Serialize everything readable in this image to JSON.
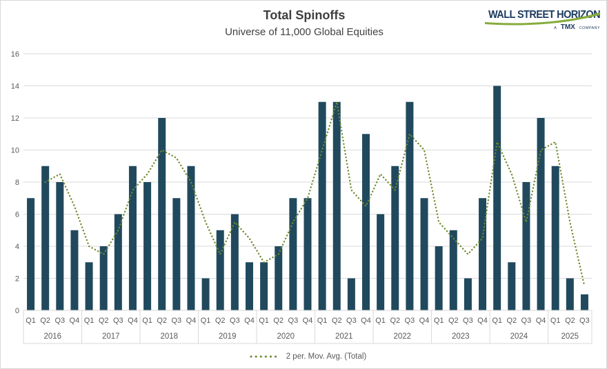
{
  "header": {
    "title": "Total Spinoffs",
    "subtitle": "Universe of 11,000 Global Equities"
  },
  "logo": {
    "wordmark": "WALL STREET HORIZON",
    "tagline_a": "A",
    "tagline_tmx": "TMX",
    "tagline_company": "COMPANY"
  },
  "legend": {
    "label": "2 per. Mov. Avg. (Total)"
  },
  "colors": {
    "bar": "#21495e",
    "movavg": "#6e8b2b",
    "gridline": "#d9d9d9",
    "axis_text": "#595959",
    "title_text": "#3f3f3f",
    "logo_navy": "#1c3a5e",
    "logo_green": "#86ab3c"
  },
  "chart_data": {
    "type": "bar",
    "title": "Total Spinoffs",
    "subtitle": "Universe of 11,000 Global Equities",
    "xlabel": "",
    "ylabel": "",
    "ylim": [
      0,
      16
    ],
    "yticks": [
      0,
      2,
      4,
      6,
      8,
      10,
      12,
      14,
      16
    ],
    "grid": true,
    "legend_position": "bottom",
    "groups": [
      {
        "year": "2016",
        "quarters": [
          "Q1",
          "Q2",
          "Q3",
          "Q4"
        ],
        "values": [
          7,
          9,
          8,
          5
        ]
      },
      {
        "year": "2017",
        "quarters": [
          "Q1",
          "Q2",
          "Q3",
          "Q4"
        ],
        "values": [
          3,
          4,
          6,
          9
        ]
      },
      {
        "year": "2018",
        "quarters": [
          "Q1",
          "Q2",
          "Q3",
          "Q4"
        ],
        "values": [
          8,
          12,
          7,
          9
        ]
      },
      {
        "year": "2019",
        "quarters": [
          "Q1",
          "Q2",
          "Q3",
          "Q4"
        ],
        "values": [
          2,
          5,
          6,
          3
        ]
      },
      {
        "year": "2020",
        "quarters": [
          "Q1",
          "Q2",
          "Q3",
          "Q4"
        ],
        "values": [
          3,
          4,
          7,
          7
        ]
      },
      {
        "year": "2021",
        "quarters": [
          "Q1",
          "Q2",
          "Q3",
          "Q4"
        ],
        "values": [
          13,
          13,
          2,
          11
        ]
      },
      {
        "year": "2022",
        "quarters": [
          "Q1",
          "Q2",
          "Q3",
          "Q4"
        ],
        "values": [
          6,
          9,
          13,
          7
        ]
      },
      {
        "year": "2023",
        "quarters": [
          "Q1",
          "Q2",
          "Q3",
          "Q4"
        ],
        "values": [
          4,
          5,
          2,
          7
        ]
      },
      {
        "year": "2024",
        "quarters": [
          "Q1",
          "Q2",
          "Q3",
          "Q4"
        ],
        "values": [
          14,
          3,
          8,
          12
        ]
      },
      {
        "year": "2025",
        "quarters": [
          "Q1",
          "Q2",
          "Q3"
        ],
        "values": [
          9,
          2,
          1
        ]
      }
    ],
    "series": [
      {
        "name": "Total",
        "type": "bar",
        "values": [
          7,
          9,
          8,
          5,
          3,
          4,
          6,
          9,
          8,
          12,
          7,
          9,
          2,
          5,
          6,
          3,
          3,
          4,
          7,
          7,
          13,
          13,
          2,
          11,
          6,
          9,
          13,
          7,
          4,
          5,
          2,
          7,
          14,
          3,
          8,
          12,
          9,
          2,
          1
        ]
      },
      {
        "name": "2 per. Mov. Avg. (Total)",
        "type": "dotted-line",
        "values": [
          null,
          8,
          8.5,
          6.5,
          4,
          3.5,
          5,
          7.5,
          8.5,
          10,
          9.5,
          8,
          5.5,
          3.5,
          5.5,
          4.5,
          3,
          3.5,
          5.5,
          7,
          10,
          13,
          7.5,
          6.5,
          8.5,
          7.5,
          11,
          10,
          5.5,
          4.5,
          3.5,
          4.5,
          10.5,
          8.5,
          5.5,
          10,
          10.5,
          5.5,
          1.5
        ]
      }
    ]
  }
}
